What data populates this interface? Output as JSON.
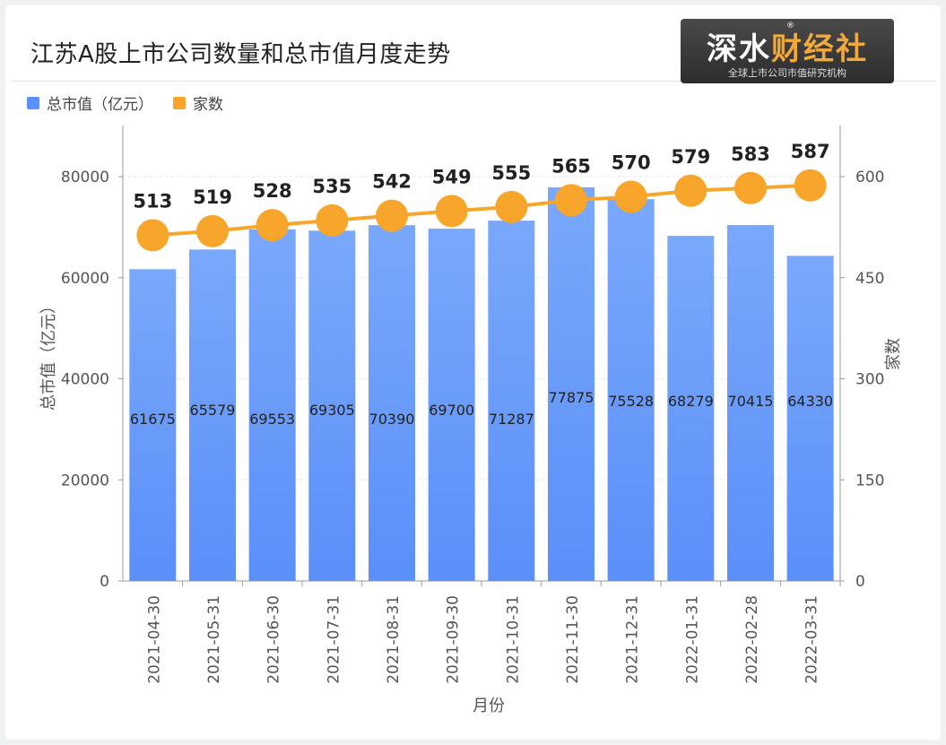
{
  "title": "江苏A股上市公司数量和总市值月度走势",
  "logo": {
    "main_a": "深水",
    "main_b": "财经社",
    "registered": "®",
    "sub": "全球上市公司市值研究机构"
  },
  "legend": {
    "items": [
      {
        "label": "总市值（亿元）",
        "color": "#5b8ff9"
      },
      {
        "label": "家数",
        "color": "#f7a62b"
      }
    ]
  },
  "chart_data": {
    "type": "bar",
    "categories": [
      "2021-04-30",
      "2021-05-31",
      "2021-06-30",
      "2021-07-31",
      "2021-08-31",
      "2021-09-30",
      "2021-10-31",
      "2021-11-30",
      "2021-12-31",
      "2022-01-31",
      "2022-02-28",
      "2022-03-31"
    ],
    "series": [
      {
        "name": "总市值（亿元）",
        "type": "bar",
        "axis": "left",
        "color": "#5b8ff9",
        "values": [
          61675,
          65579,
          69553,
          69305,
          70390,
          69700,
          71287,
          77875,
          75528,
          68279,
          70415,
          64330
        ]
      },
      {
        "name": "家数",
        "type": "line",
        "axis": "right",
        "color": "#f7a62b",
        "values": [
          513,
          519,
          528,
          535,
          542,
          549,
          555,
          565,
          570,
          579,
          583,
          587
        ]
      }
    ],
    "xlabel": "月份",
    "ylabel": "总市值（亿元）",
    "y2label": "家数",
    "ylim": [
      0,
      80000
    ],
    "y2lim": [
      0,
      600
    ],
    "yticks": [
      "0",
      "20000",
      "40000",
      "60000",
      "80000"
    ],
    "y2ticks": [
      "0",
      "150",
      "300",
      "450",
      "600"
    ]
  }
}
